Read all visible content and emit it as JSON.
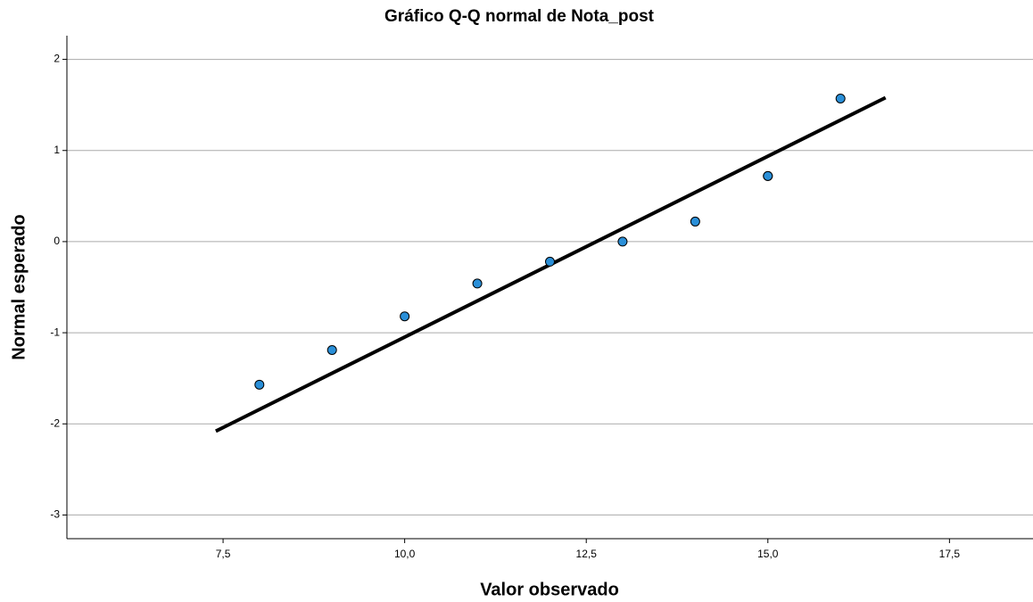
{
  "chart_data": {
    "type": "scatter",
    "title": "Gráfico Q-Q normal de Nota_post",
    "x_label": "Valor observado",
    "y_label": "Normal esperado",
    "x": [
      8,
      9,
      10,
      11,
      12,
      13,
      14,
      15,
      15,
      16
    ],
    "values": [
      -1.57,
      -1.19,
      -0.82,
      -0.46,
      -0.22,
      0,
      0.22,
      0.72,
      0.72,
      1.57
    ],
    "color": "#2a8fd8",
    "reference_line": {
      "x": [
        7.4,
        16.62
      ],
      "y": [
        -2.08,
        1.58
      ],
      "color": "#000000"
    },
    "xlim": [
      5.35,
      18.65
    ],
    "ylim": [
      -3.26,
      2.26
    ],
    "xticks": [
      {
        "value": 7.5,
        "label": "7,5"
      },
      {
        "value": 10,
        "label": "10,0"
      },
      {
        "value": 12.5,
        "label": "12,5"
      },
      {
        "value": 15,
        "label": "15,0"
      },
      {
        "value": 17.5,
        "label": "17,5"
      }
    ],
    "yticks": [
      -3,
      -2,
      -1,
      0,
      1,
      2
    ],
    "grid": true
  }
}
